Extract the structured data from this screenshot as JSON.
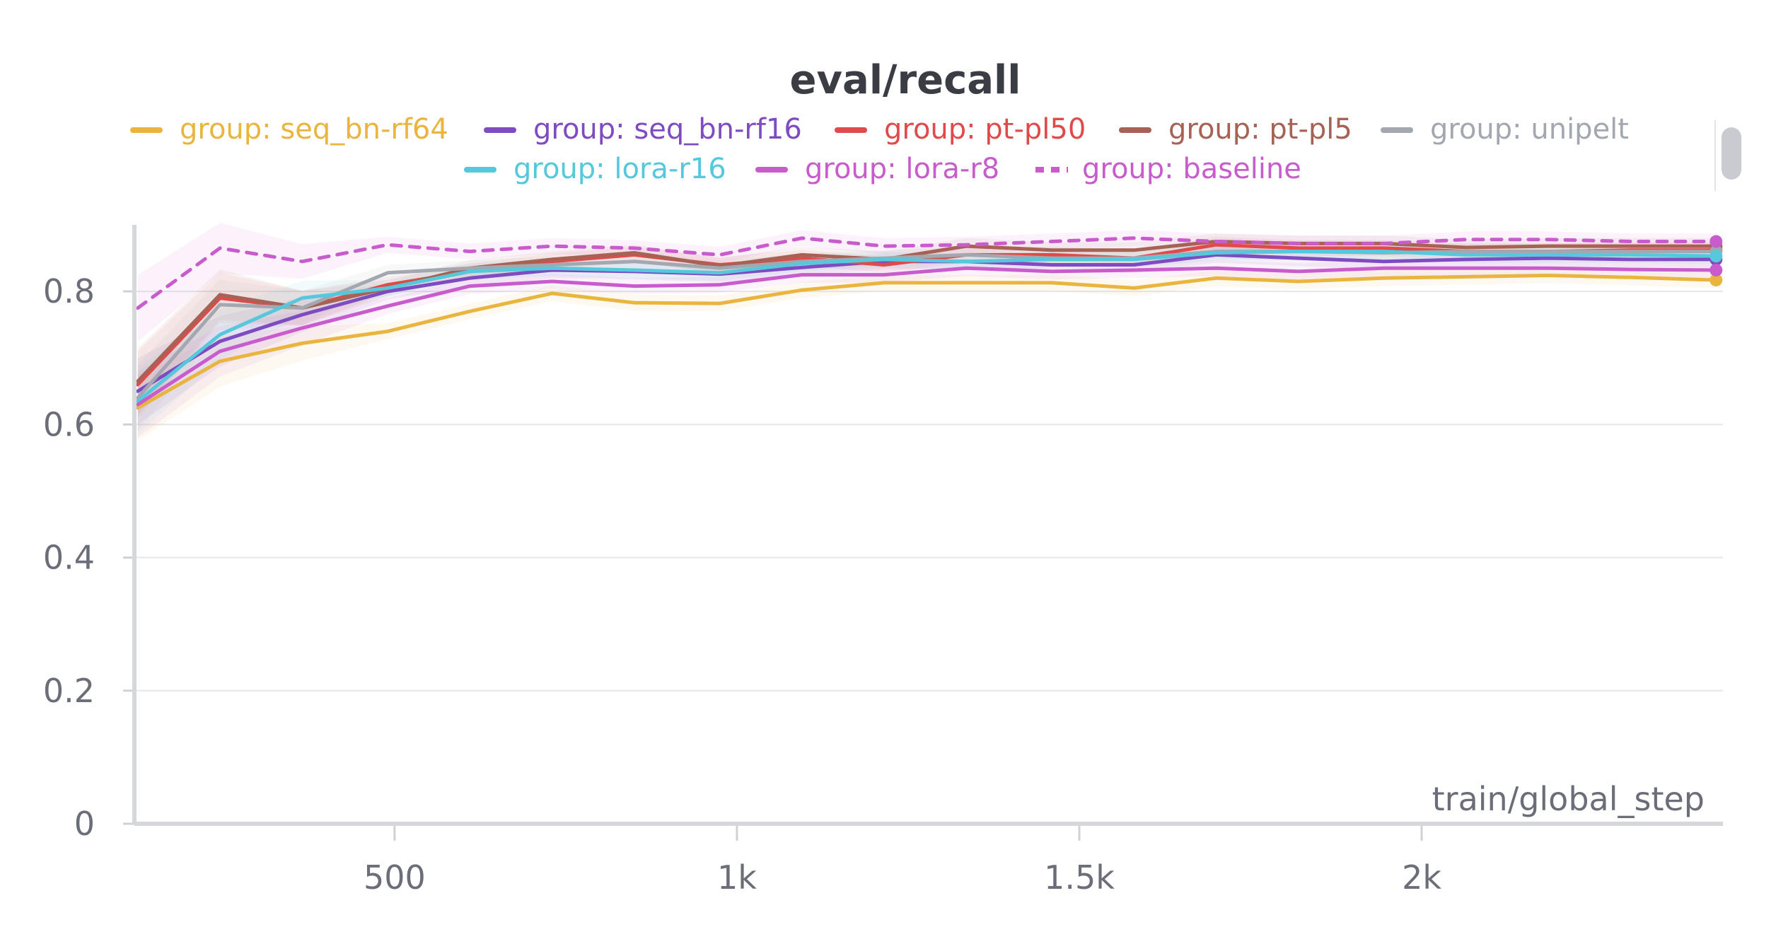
{
  "chart_data": {
    "type": "line",
    "title": "eval/recall",
    "xlabel": "train/global_step",
    "ylabel": "",
    "xlim": [
      120,
      2440
    ],
    "ylim": [
      0,
      0.9
    ],
    "xticks": [
      500,
      1000,
      1500,
      2000
    ],
    "xtick_labels": [
      "500",
      "1k",
      "1.5k",
      "2k"
    ],
    "yticks": [
      0,
      0.2,
      0.4,
      0.6,
      0.8
    ],
    "ytick_labels": [
      "0",
      "0.2",
      "0.4",
      "0.6",
      "0.8"
    ],
    "grid": true,
    "legend_position": "top",
    "x": [
      125,
      245,
      365,
      490,
      610,
      730,
      850,
      975,
      1095,
      1215,
      1335,
      1460,
      1580,
      1700,
      1820,
      1945,
      2065,
      2185,
      2305,
      2430
    ],
    "series": [
      {
        "name": "group: seq_bn-rf64",
        "color": "#e9b53f",
        "dashed": false,
        "values": [
          0.625,
          0.695,
          0.722,
          0.74,
          0.77,
          0.797,
          0.783,
          0.782,
          0.802,
          0.813,
          0.813,
          0.813,
          0.805,
          0.82,
          0.815,
          0.82,
          0.822,
          0.824,
          0.821,
          0.817
        ]
      },
      {
        "name": "group: seq_bn-rf16",
        "color": "#7e4cc0",
        "dashed": false,
        "values": [
          0.65,
          0.725,
          0.765,
          0.8,
          0.82,
          0.832,
          0.83,
          0.826,
          0.836,
          0.845,
          0.845,
          0.84,
          0.84,
          0.855,
          0.85,
          0.845,
          0.848,
          0.85,
          0.848,
          0.848
        ]
      },
      {
        "name": "group: pt-pl50",
        "color": "#e04a4a",
        "dashed": false,
        "values": [
          0.66,
          0.79,
          0.775,
          0.81,
          0.83,
          0.845,
          0.855,
          0.84,
          0.85,
          0.84,
          0.855,
          0.855,
          0.85,
          0.87,
          0.865,
          0.865,
          0.86,
          0.86,
          0.862,
          0.862
        ]
      },
      {
        "name": "group: pt-pl5",
        "color": "#a66355",
        "dashed": false,
        "values": [
          0.665,
          0.795,
          0.775,
          0.805,
          0.835,
          0.848,
          0.858,
          0.838,
          0.855,
          0.848,
          0.868,
          0.862,
          0.862,
          0.875,
          0.872,
          0.872,
          0.866,
          0.868,
          0.868,
          0.868
        ]
      },
      {
        "name": "group: unipelt",
        "color": "#a3a8b0",
        "dashed": false,
        "values": [
          0.64,
          0.78,
          0.775,
          0.828,
          0.835,
          0.84,
          0.845,
          0.835,
          0.845,
          0.85,
          0.855,
          0.85,
          0.85,
          0.86,
          0.86,
          0.858,
          0.86,
          0.86,
          0.86,
          0.86
        ]
      },
      {
        "name": "group: lora-r16",
        "color": "#56c8dc",
        "dashed": false,
        "values": [
          0.635,
          0.735,
          0.79,
          0.805,
          0.83,
          0.835,
          0.832,
          0.828,
          0.842,
          0.848,
          0.845,
          0.848,
          0.848,
          0.858,
          0.86,
          0.86,
          0.855,
          0.855,
          0.855,
          0.853
        ]
      },
      {
        "name": "group: lora-r8",
        "color": "#c95ccc",
        "dashed": false,
        "values": [
          0.63,
          0.71,
          0.745,
          0.778,
          0.808,
          0.815,
          0.808,
          0.81,
          0.825,
          0.825,
          0.835,
          0.83,
          0.832,
          0.835,
          0.83,
          0.835,
          0.835,
          0.835,
          0.833,
          0.832
        ]
      },
      {
        "name": "group: baseline",
        "color": "#c95ccc",
        "dashed": true,
        "values": [
          0.775,
          0.865,
          0.845,
          0.87,
          0.86,
          0.868,
          0.865,
          0.855,
          0.88,
          0.868,
          0.87,
          0.875,
          0.88,
          0.875,
          0.872,
          0.872,
          0.878,
          0.878,
          0.875,
          0.875
        ]
      }
    ]
  }
}
